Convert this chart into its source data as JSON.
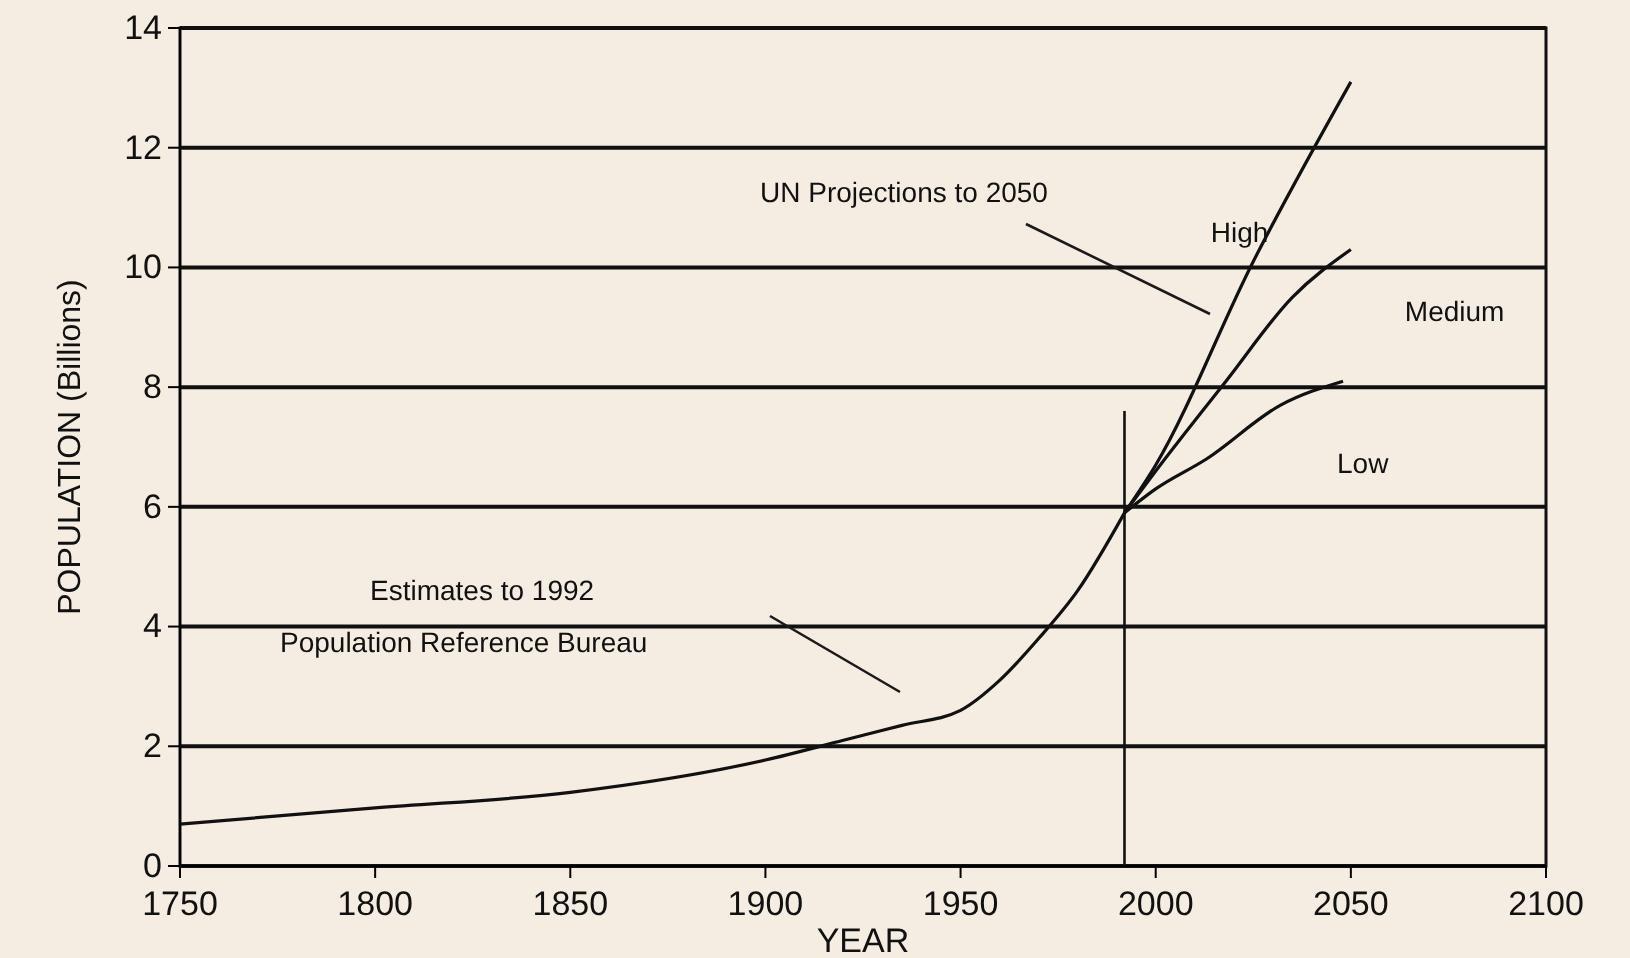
{
  "chart_data": {
    "type": "line",
    "xlabel": "YEAR",
    "ylabel": "POPULATION (Billions)",
    "xlim": [
      1750,
      2100
    ],
    "xticks": [
      1750,
      1800,
      1850,
      1900,
      1950,
      2000,
      2050,
      2100
    ],
    "ylim": [
      0,
      14
    ],
    "yticks": [
      0,
      2,
      4,
      6,
      8,
      10,
      12,
      14
    ],
    "grid": "y",
    "marker": "none",
    "line_style": "solid",
    "series": [
      {
        "color": "#111111",
        "x": [
          1750,
          1800,
          1850,
          1900,
          1920,
          1935,
          1950,
          1960,
          1970,
          1980,
          1992
        ],
        "values": [
          0.7,
          0.97,
          1.23,
          1.77,
          2.1,
          2.35,
          2.6,
          3.1,
          3.8,
          4.6,
          5.9
        ]
      },
      {
        "name": "High",
        "color": "#111111",
        "x": [
          1992,
          2000,
          2025,
          2050
        ],
        "values": [
          5.9,
          6.7,
          10.1,
          13.1
        ]
      },
      {
        "name": "Medium",
        "color": "#111111",
        "x": [
          1992,
          2000,
          2018,
          2035,
          2050
        ],
        "values": [
          5.9,
          6.6,
          8.1,
          9.5,
          10.3
        ]
      },
      {
        "name": "Low",
        "color": "#111111",
        "x": [
          1992,
          2000,
          2013,
          2032,
          2048
        ],
        "values": [
          5.9,
          6.3,
          6.8,
          7.7,
          8.1
        ]
      }
    ],
    "ref_lines": [
      {
        "axis": "x",
        "value": 1992,
        "color": "#111111"
      }
    ],
    "annotations": [
      "UN Projections to 2050",
      "Estimates to 1992",
      "Population Reference Bureau"
    ]
  }
}
